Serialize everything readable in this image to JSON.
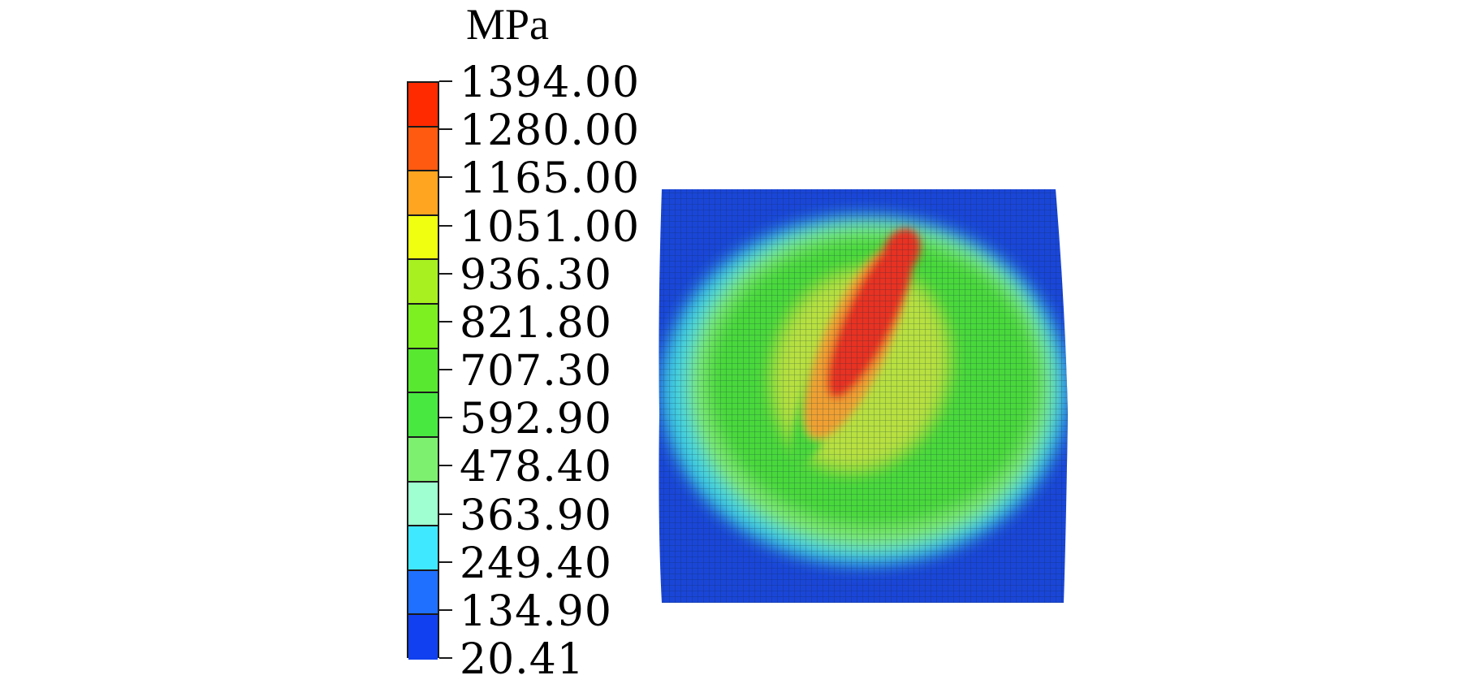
{
  "legend": {
    "unit": "MPa",
    "tick_values": [
      "1394.00",
      "1280.00",
      "1165.00",
      "1051.00",
      "936.30",
      "821.80",
      "707.30",
      "592.90",
      "478.40",
      "363.90",
      "249.40",
      "134.90",
      "20.41"
    ],
    "band_colors": [
      "#ff2a00",
      "#ff5a10",
      "#ffa520",
      "#f0ff10",
      "#a8f020",
      "#7cf020",
      "#58e830",
      "#48e840",
      "#7ef070",
      "#a0ffd0",
      "#40e8ff",
      "#2070ff",
      "#1040f0"
    ]
  },
  "plot": {
    "colors": {
      "background_blue": "#1a46d8",
      "outer_cyan": "#40d0e0",
      "light_green": "#7ee870",
      "green": "#4ad83a",
      "yellow_green": "#b8e040",
      "orange": "#f0a030",
      "red": "#e83020",
      "mesh": "#0a2a40"
    }
  }
}
